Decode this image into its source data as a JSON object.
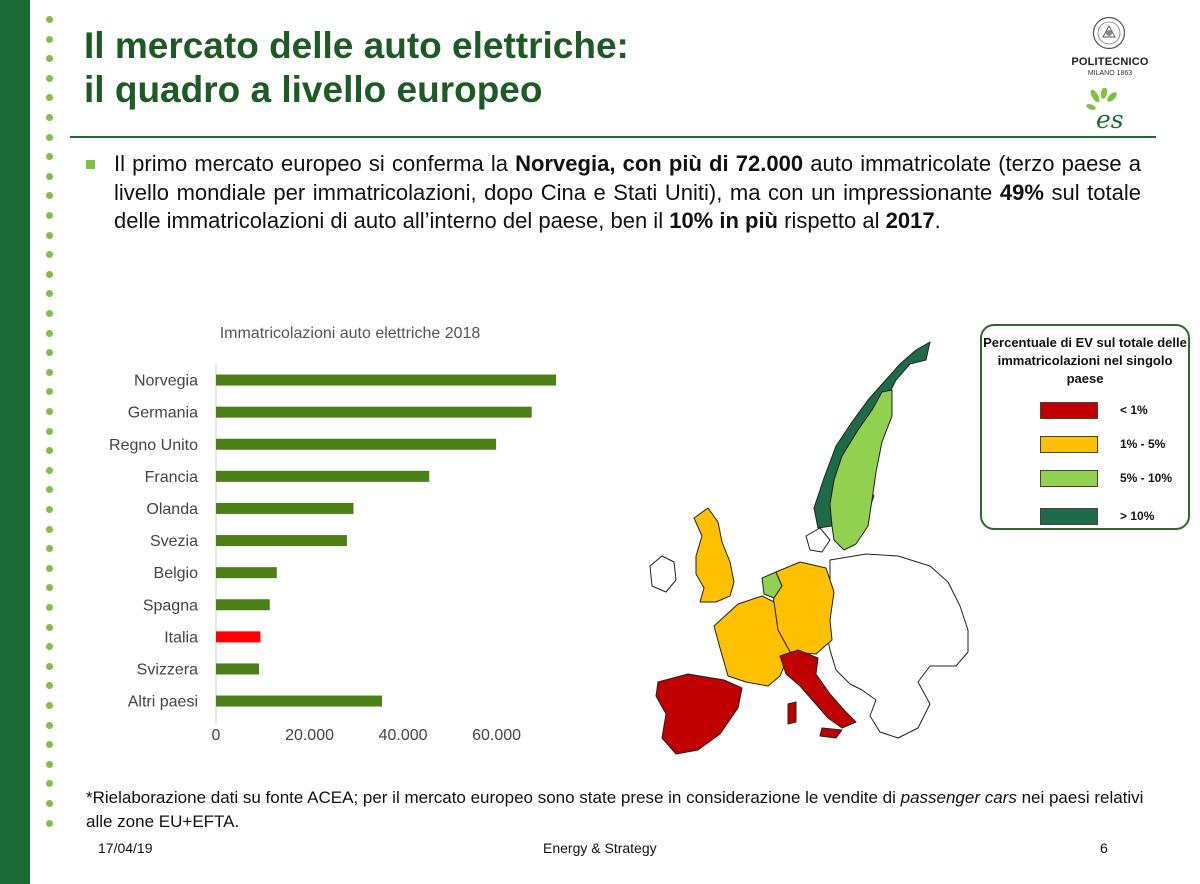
{
  "slide": {
    "title_line1": "Il mercato delle auto elettriche:",
    "title_line2": "il quadro a livello europeo",
    "logo": {
      "name": "POLITECNICO",
      "city": "MILANO 1863",
      "mark": "es"
    },
    "bullet": {
      "t1": "Il primo mercato europeo si conferma la ",
      "b1": "Norvegia, con più di 72.000",
      "t2": " auto immatricolate (terzo paese a livello mondiale per immatricolazioni, dopo Cina e Stati Uniti), ma con un impressionante ",
      "b2": "49%",
      "t3": " sul totale delle immatricolazioni di auto all’interno del paese, ben il ",
      "b3": "10% in più",
      "t4": " rispetto al ",
      "b4": "2017",
      "t5": "."
    },
    "footnote_a": "*Rielaborazione dati su fonte ACEA; per il mercato europeo sono state prese in considerazione le vendite di ",
    "footnote_em": "passenger cars",
    "footnote_b": " nei paesi relativi alle zone EU+EFTA.",
    "footer": {
      "date": "17/04/19",
      "center": "Energy & Strategy",
      "page": "6"
    }
  },
  "legend": {
    "title": "Percentuale di EV sul totale delle immatricolazioni nel singolo paese",
    "items": [
      {
        "label": "< 1%",
        "color": "#c00000"
      },
      {
        "label": "1% - 5%",
        "color": "#ffc000"
      },
      {
        "label": "5% - 10%",
        "color": "#92d050"
      },
      {
        "label": "> 10%",
        "color": "#1e6b4a"
      }
    ]
  },
  "map_colors": {
    "norway": "#1e6b4a",
    "sweden": "#92d050",
    "netherlands": "#92d050",
    "uk": "#ffc000",
    "germany": "#ffc000",
    "france": "#ffc000",
    "spain": "#c00000",
    "italy": "#c00000",
    "other": "#ffffff"
  },
  "chart_data": {
    "type": "bar",
    "orientation": "horizontal",
    "title": "Immatricolazioni auto elettriche 2018",
    "categories": [
      "Norvegia",
      "Germania",
      "Regno Unito",
      "Francia",
      "Olanda",
      "Svezia",
      "Belgio",
      "Spagna",
      "Italia",
      "Svizzera",
      "Altri paesi"
    ],
    "values": [
      72700,
      67500,
      59900,
      45600,
      29400,
      28000,
      13000,
      11500,
      9500,
      9200,
      35500
    ],
    "colors": [
      "#4d7f17",
      "#4d7f17",
      "#4d7f17",
      "#4d7f17",
      "#4d7f17",
      "#4d7f17",
      "#4d7f17",
      "#4d7f17",
      "#ff0000",
      "#4d7f17",
      "#4d7f17"
    ],
    "xticks": [
      0,
      20000,
      40000,
      60000
    ],
    "xtick_labels": [
      "0",
      "20.000",
      "40.000",
      "60.000"
    ],
    "xlim": [
      0,
      72700
    ],
    "grid": false
  }
}
